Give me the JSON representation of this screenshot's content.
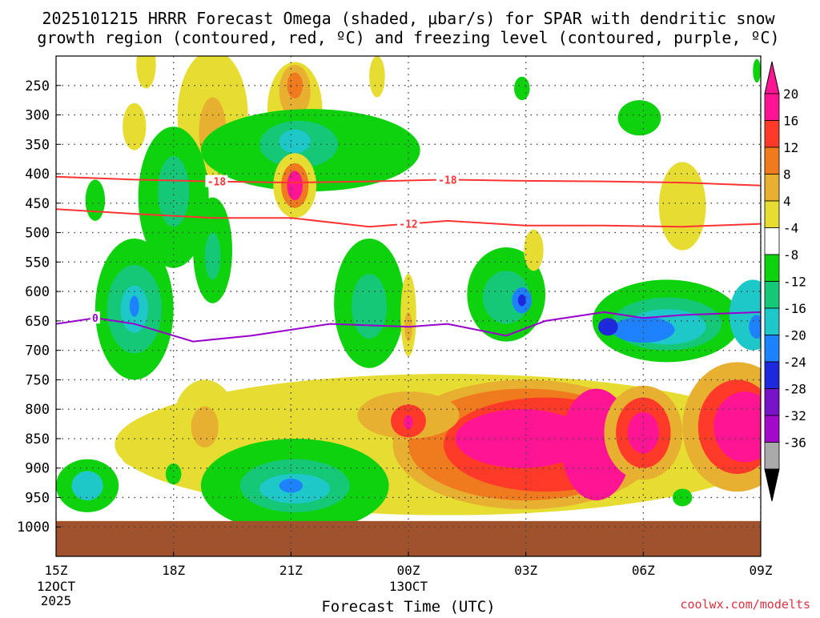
{
  "chart_data": {
    "type": "heatmap",
    "title_line1": "2025101215 HRRR Forecast Omega (shaded, μbar/s) for SPAR with dendritic snow",
    "title_line2": "growth region (contoured, red, ºC) and freezing level (contoured, purple, ºC)",
    "xlabel": "Forecast Time (UTC)",
    "ylabel": "",
    "credit": "coolwx.com/modelts",
    "x_range_hours": [
      0,
      18
    ],
    "x_ticks": [
      {
        "hour": 0,
        "label": "15Z",
        "sub1": "12OCT",
        "sub2": "2025"
      },
      {
        "hour": 3,
        "label": "18Z",
        "sub1": "",
        "sub2": ""
      },
      {
        "hour": 6,
        "label": "21Z",
        "sub1": "",
        "sub2": ""
      },
      {
        "hour": 9,
        "label": "00Z",
        "sub1": "13OCT",
        "sub2": ""
      },
      {
        "hour": 12,
        "label": "03Z",
        "sub1": "",
        "sub2": ""
      },
      {
        "hour": 15,
        "label": "06Z",
        "sub1": "",
        "sub2": ""
      },
      {
        "hour": 18,
        "label": "09Z",
        "sub1": "",
        "sub2": ""
      }
    ],
    "y_range_hpa": [
      200,
      1050
    ],
    "y_ticks": [
      {
        "value": 250,
        "label": "250"
      },
      {
        "value": 300,
        "label": "300"
      },
      {
        "value": 350,
        "label": "350"
      },
      {
        "value": 400,
        "label": "400"
      },
      {
        "value": 450,
        "label": "450"
      },
      {
        "value": 500,
        "label": "500"
      },
      {
        "value": 550,
        "label": "550"
      },
      {
        "value": 600,
        "label": "600"
      },
      {
        "value": 650,
        "label": "650"
      },
      {
        "value": 700,
        "label": "700"
      },
      {
        "value": 750,
        "label": "750"
      },
      {
        "value": 800,
        "label": "800"
      },
      {
        "value": 850,
        "label": "850"
      },
      {
        "value": 900,
        "label": "900"
      },
      {
        "value": 950,
        "label": "950"
      },
      {
        "value": 1000,
        "label": "1000"
      }
    ],
    "surface_top_hpa": 990,
    "surface_color": "#a0522d",
    "colorbar": {
      "labels": [
        "20",
        "16",
        "12",
        "8",
        "4",
        "-4",
        "-8",
        "-12",
        "-16",
        "-20",
        "-24",
        "-28",
        "-32",
        "-36"
      ],
      "colors": [
        "#ff1493",
        "#ff3a28",
        "#f07a1e",
        "#e8b030",
        "#e6dc32",
        "#ffffff",
        "#0fd20f",
        "#14c878",
        "#1ec8c8",
        "#1e82ff",
        "#1e28dc",
        "#7814c8",
        "#a00ac8",
        "#aaaaaa"
      ],
      "top_color": "#ff1493",
      "bottom_color": "#000000"
    },
    "blobs": [
      {
        "h": 6.1,
        "p": 290,
        "rx": 0.7,
        "ry": 80,
        "level": "4",
        "color": "#e6dc32"
      },
      {
        "h": 6.1,
        "p": 260,
        "rx": 0.4,
        "ry": 45,
        "level": "8",
        "color": "#e8b030"
      },
      {
        "h": 6.1,
        "p": 250,
        "rx": 0.2,
        "ry": 22,
        "level": "12",
        "color": "#f07a1e"
      },
      {
        "h": 4.0,
        "p": 300,
        "rx": 0.9,
        "ry": 110,
        "level": "4",
        "color": "#e6dc32"
      },
      {
        "h": 4.0,
        "p": 330,
        "rx": 0.35,
        "ry": 60,
        "level": "8",
        "color": "#e8b030"
      },
      {
        "h": 2.0,
        "p": 320,
        "rx": 0.3,
        "ry": 40,
        "level": "4",
        "color": "#e6dc32"
      },
      {
        "h": 2.3,
        "p": 215,
        "rx": 0.25,
        "ry": 40,
        "level": "4",
        "color": "#e6dc32"
      },
      {
        "h": 8.2,
        "p": 235,
        "rx": 0.2,
        "ry": 35,
        "level": "4",
        "color": "#e6dc32"
      },
      {
        "h": 6.5,
        "p": 360,
        "rx": 2.8,
        "ry": 70,
        "level": "-4",
        "color": "#0fd20f"
      },
      {
        "h": 6.2,
        "p": 350,
        "rx": 1.0,
        "ry": 40,
        "level": "-8",
        "color": "#14c878"
      },
      {
        "h": 6.1,
        "p": 345,
        "rx": 0.4,
        "ry": 20,
        "level": "-12",
        "color": "#1ec8c8"
      },
      {
        "h": 3.0,
        "p": 440,
        "rx": 0.9,
        "ry": 120,
        "level": "-4",
        "color": "#0fd20f"
      },
      {
        "h": 3.0,
        "p": 430,
        "rx": 0.4,
        "ry": 60,
        "level": "-8",
        "color": "#14c878"
      },
      {
        "h": 4.0,
        "p": 530,
        "rx": 0.5,
        "ry": 90,
        "level": "-4",
        "color": "#0fd20f"
      },
      {
        "h": 4.0,
        "p": 540,
        "rx": 0.2,
        "ry": 40,
        "level": "-8",
        "color": "#14c878"
      },
      {
        "h": 6.1,
        "p": 420,
        "rx": 0.55,
        "ry": 55,
        "level": "4",
        "color": "#e6dc32"
      },
      {
        "h": 6.1,
        "p": 420,
        "rx": 0.35,
        "ry": 38,
        "level": "12",
        "color": "#f07a1e"
      },
      {
        "h": 6.1,
        "p": 420,
        "rx": 0.2,
        "ry": 25,
        "level": "20",
        "color": "#ff1493"
      },
      {
        "h": 1.0,
        "p": 445,
        "rx": 0.25,
        "ry": 35,
        "level": "-4",
        "color": "#0fd20f"
      },
      {
        "h": 2.0,
        "p": 630,
        "rx": 1.0,
        "ry": 120,
        "level": "-4",
        "color": "#0fd20f"
      },
      {
        "h": 2.0,
        "p": 630,
        "rx": 0.7,
        "ry": 75,
        "level": "-8",
        "color": "#14c878"
      },
      {
        "h": 2.0,
        "p": 630,
        "rx": 0.35,
        "ry": 40,
        "level": "-12",
        "color": "#1ec8c8"
      },
      {
        "h": 2.0,
        "p": 625,
        "rx": 0.12,
        "ry": 18,
        "level": "-16",
        "color": "#1e82ff"
      },
      {
        "h": 8.0,
        "p": 620,
        "rx": 0.9,
        "ry": 110,
        "level": "-4",
        "color": "#0fd20f"
      },
      {
        "h": 8.0,
        "p": 625,
        "rx": 0.45,
        "ry": 55,
        "level": "-8",
        "color": "#14c878"
      },
      {
        "h": 9.0,
        "p": 640,
        "rx": 0.2,
        "ry": 70,
        "level": "4",
        "color": "#e6dc32"
      },
      {
        "h": 9.0,
        "p": 660,
        "rx": 0.1,
        "ry": 25,
        "level": "8",
        "color": "#e8b030"
      },
      {
        "h": 11.5,
        "p": 605,
        "rx": 1.0,
        "ry": 80,
        "level": "-4",
        "color": "#0fd20f"
      },
      {
        "h": 11.5,
        "p": 610,
        "rx": 0.6,
        "ry": 45,
        "level": "-8",
        "color": "#14c878"
      },
      {
        "h": 11.9,
        "p": 615,
        "rx": 0.25,
        "ry": 22,
        "level": "-16",
        "color": "#1e82ff"
      },
      {
        "h": 11.9,
        "p": 615,
        "rx": 0.1,
        "ry": 10,
        "level": "-20",
        "color": "#1e28dc"
      },
      {
        "h": 15.6,
        "p": 650,
        "rx": 1.9,
        "ry": 70,
        "level": "-4",
        "color": "#0fd20f"
      },
      {
        "h": 15.6,
        "p": 655,
        "rx": 1.4,
        "ry": 45,
        "level": "-8",
        "color": "#14c878"
      },
      {
        "h": 15.6,
        "p": 660,
        "rx": 1.0,
        "ry": 30,
        "level": "-12",
        "color": "#1ec8c8"
      },
      {
        "h": 15.0,
        "p": 665,
        "rx": 0.8,
        "ry": 22,
        "level": "-16",
        "color": "#1e82ff"
      },
      {
        "h": 14.1,
        "p": 660,
        "rx": 0.25,
        "ry": 15,
        "level": "-20",
        "color": "#1e28dc"
      },
      {
        "h": 17.8,
        "p": 640,
        "rx": 0.6,
        "ry": 60,
        "level": "-12",
        "color": "#1ec8c8"
      },
      {
        "h": 17.9,
        "p": 660,
        "rx": 0.2,
        "ry": 20,
        "level": "-16",
        "color": "#1e82ff"
      },
      {
        "h": 10.0,
        "p": 860,
        "rx": 8.5,
        "ry": 120,
        "level": "4",
        "color": "#e6dc32"
      },
      {
        "h": 12.0,
        "p": 860,
        "rx": 3.4,
        "ry": 110,
        "level": "8",
        "color": "#e8b030"
      },
      {
        "h": 12.0,
        "p": 860,
        "rx": 3.0,
        "ry": 95,
        "level": "12",
        "color": "#f07a1e"
      },
      {
        "h": 12.5,
        "p": 860,
        "rx": 2.6,
        "ry": 80,
        "level": "16",
        "color": "#ff3a28"
      },
      {
        "h": 11.9,
        "p": 850,
        "rx": 1.7,
        "ry": 50,
        "level": "20",
        "color": "#ff1493"
      },
      {
        "h": 13.8,
        "p": 860,
        "rx": 0.9,
        "ry": 95,
        "level": "20",
        "color": "#ff1493"
      },
      {
        "h": 15.0,
        "p": 840,
        "rx": 1.0,
        "ry": 80,
        "level": "8",
        "color": "#e8b030"
      },
      {
        "h": 15.0,
        "p": 840,
        "rx": 0.7,
        "ry": 60,
        "level": "16",
        "color": "#ff3a28"
      },
      {
        "h": 15.0,
        "p": 840,
        "rx": 0.4,
        "ry": 35,
        "level": "20",
        "color": "#ff1493"
      },
      {
        "h": 17.4,
        "p": 830,
        "rx": 1.4,
        "ry": 110,
        "level": "8",
        "color": "#e8b030"
      },
      {
        "h": 17.4,
        "p": 830,
        "rx": 1.0,
        "ry": 80,
        "level": "16",
        "color": "#ff3a28"
      },
      {
        "h": 17.6,
        "p": 830,
        "rx": 0.8,
        "ry": 60,
        "level": "20",
        "color": "#ff1493"
      },
      {
        "h": 9.0,
        "p": 810,
        "rx": 1.3,
        "ry": 40,
        "level": "8",
        "color": "#e8b030"
      },
      {
        "h": 9.0,
        "p": 820,
        "rx": 0.45,
        "ry": 28,
        "level": "16",
        "color": "#ff3a28"
      },
      {
        "h": 9.0,
        "p": 822,
        "rx": 0.12,
        "ry": 12,
        "level": "20",
        "color": "#ff1493"
      },
      {
        "h": 3.8,
        "p": 820,
        "rx": 0.8,
        "ry": 70,
        "level": "4",
        "color": "#e6dc32"
      },
      {
        "h": 3.8,
        "p": 830,
        "rx": 0.35,
        "ry": 35,
        "level": "8",
        "color": "#e8b030"
      },
      {
        "h": 6.1,
        "p": 930,
        "rx": 2.4,
        "ry": 80,
        "level": "-4",
        "color": "#0fd20f"
      },
      {
        "h": 6.1,
        "p": 930,
        "rx": 1.4,
        "ry": 45,
        "level": "-8",
        "color": "#14c878"
      },
      {
        "h": 6.1,
        "p": 935,
        "rx": 0.9,
        "ry": 25,
        "level": "-12",
        "color": "#1ec8c8"
      },
      {
        "h": 6.0,
        "p": 930,
        "rx": 0.3,
        "ry": 12,
        "level": "-16",
        "color": "#1e82ff"
      },
      {
        "h": 0.8,
        "p": 930,
        "rx": 0.8,
        "ry": 45,
        "level": "-4",
        "color": "#0fd20f"
      },
      {
        "h": 0.8,
        "p": 930,
        "rx": 0.4,
        "ry": 25,
        "level": "-12",
        "color": "#1ec8c8"
      },
      {
        "h": 2.0,
        "p": 875,
        "rx": 0.35,
        "ry": 22,
        "level": "4",
        "color": "#e6dc32"
      },
      {
        "h": 3.0,
        "p": 910,
        "rx": 0.2,
        "ry": 18,
        "level": "-4",
        "color": "#0fd20f"
      },
      {
        "h": 14.9,
        "p": 305,
        "rx": 0.55,
        "ry": 30,
        "level": "-4",
        "color": "#0fd20f"
      },
      {
        "h": 12.2,
        "p": 530,
        "rx": 0.25,
        "ry": 35,
        "level": "4",
        "color": "#e6dc32"
      },
      {
        "h": 16.0,
        "p": 455,
        "rx": 0.6,
        "ry": 75,
        "level": "4",
        "color": "#e6dc32"
      },
      {
        "h": 11.9,
        "p": 255,
        "rx": 0.2,
        "ry": 20,
        "level": "-4",
        "color": "#0fd20f"
      },
      {
        "h": 17.9,
        "p": 225,
        "rx": 0.1,
        "ry": 20,
        "level": "-4",
        "color": "#0fd20f"
      },
      {
        "h": 16.0,
        "p": 950,
        "rx": 0.25,
        "ry": 15,
        "level": "-4",
        "color": "#0fd20f"
      }
    ],
    "contours": [
      {
        "name": "-18",
        "color": "#ff3333",
        "label": "-18",
        "points": [
          [
            0,
            405
          ],
          [
            2,
            410
          ],
          [
            4,
            413
          ],
          [
            6,
            415
          ],
          [
            8,
            413
          ],
          [
            10,
            410
          ],
          [
            12,
            412
          ],
          [
            14,
            413
          ],
          [
            16,
            415
          ],
          [
            18,
            420
          ]
        ],
        "label_hours": [
          4.1,
          10.0
        ]
      },
      {
        "name": "-12",
        "color": "#ff3333",
        "label": "-12",
        "points": [
          [
            0,
            460
          ],
          [
            2,
            468
          ],
          [
            4,
            475
          ],
          [
            6,
            475
          ],
          [
            8,
            490
          ],
          [
            10,
            480
          ],
          [
            12,
            488
          ],
          [
            14,
            488
          ],
          [
            16,
            490
          ],
          [
            18,
            485
          ]
        ],
        "label_hours": [
          9.0
        ]
      },
      {
        "name": "0",
        "color": "#9900cc",
        "label": "0",
        "points": [
          [
            0,
            655
          ],
          [
            1,
            645
          ],
          [
            2,
            655
          ],
          [
            3.5,
            685
          ],
          [
            5,
            675
          ],
          [
            7,
            655
          ],
          [
            9,
            660
          ],
          [
            10,
            655
          ],
          [
            11.5,
            675
          ],
          [
            12.5,
            650
          ],
          [
            14,
            635
          ],
          [
            15,
            645
          ],
          [
            16,
            640
          ],
          [
            18,
            635
          ]
        ],
        "label_hours": [
          1.0
        ]
      }
    ]
  }
}
